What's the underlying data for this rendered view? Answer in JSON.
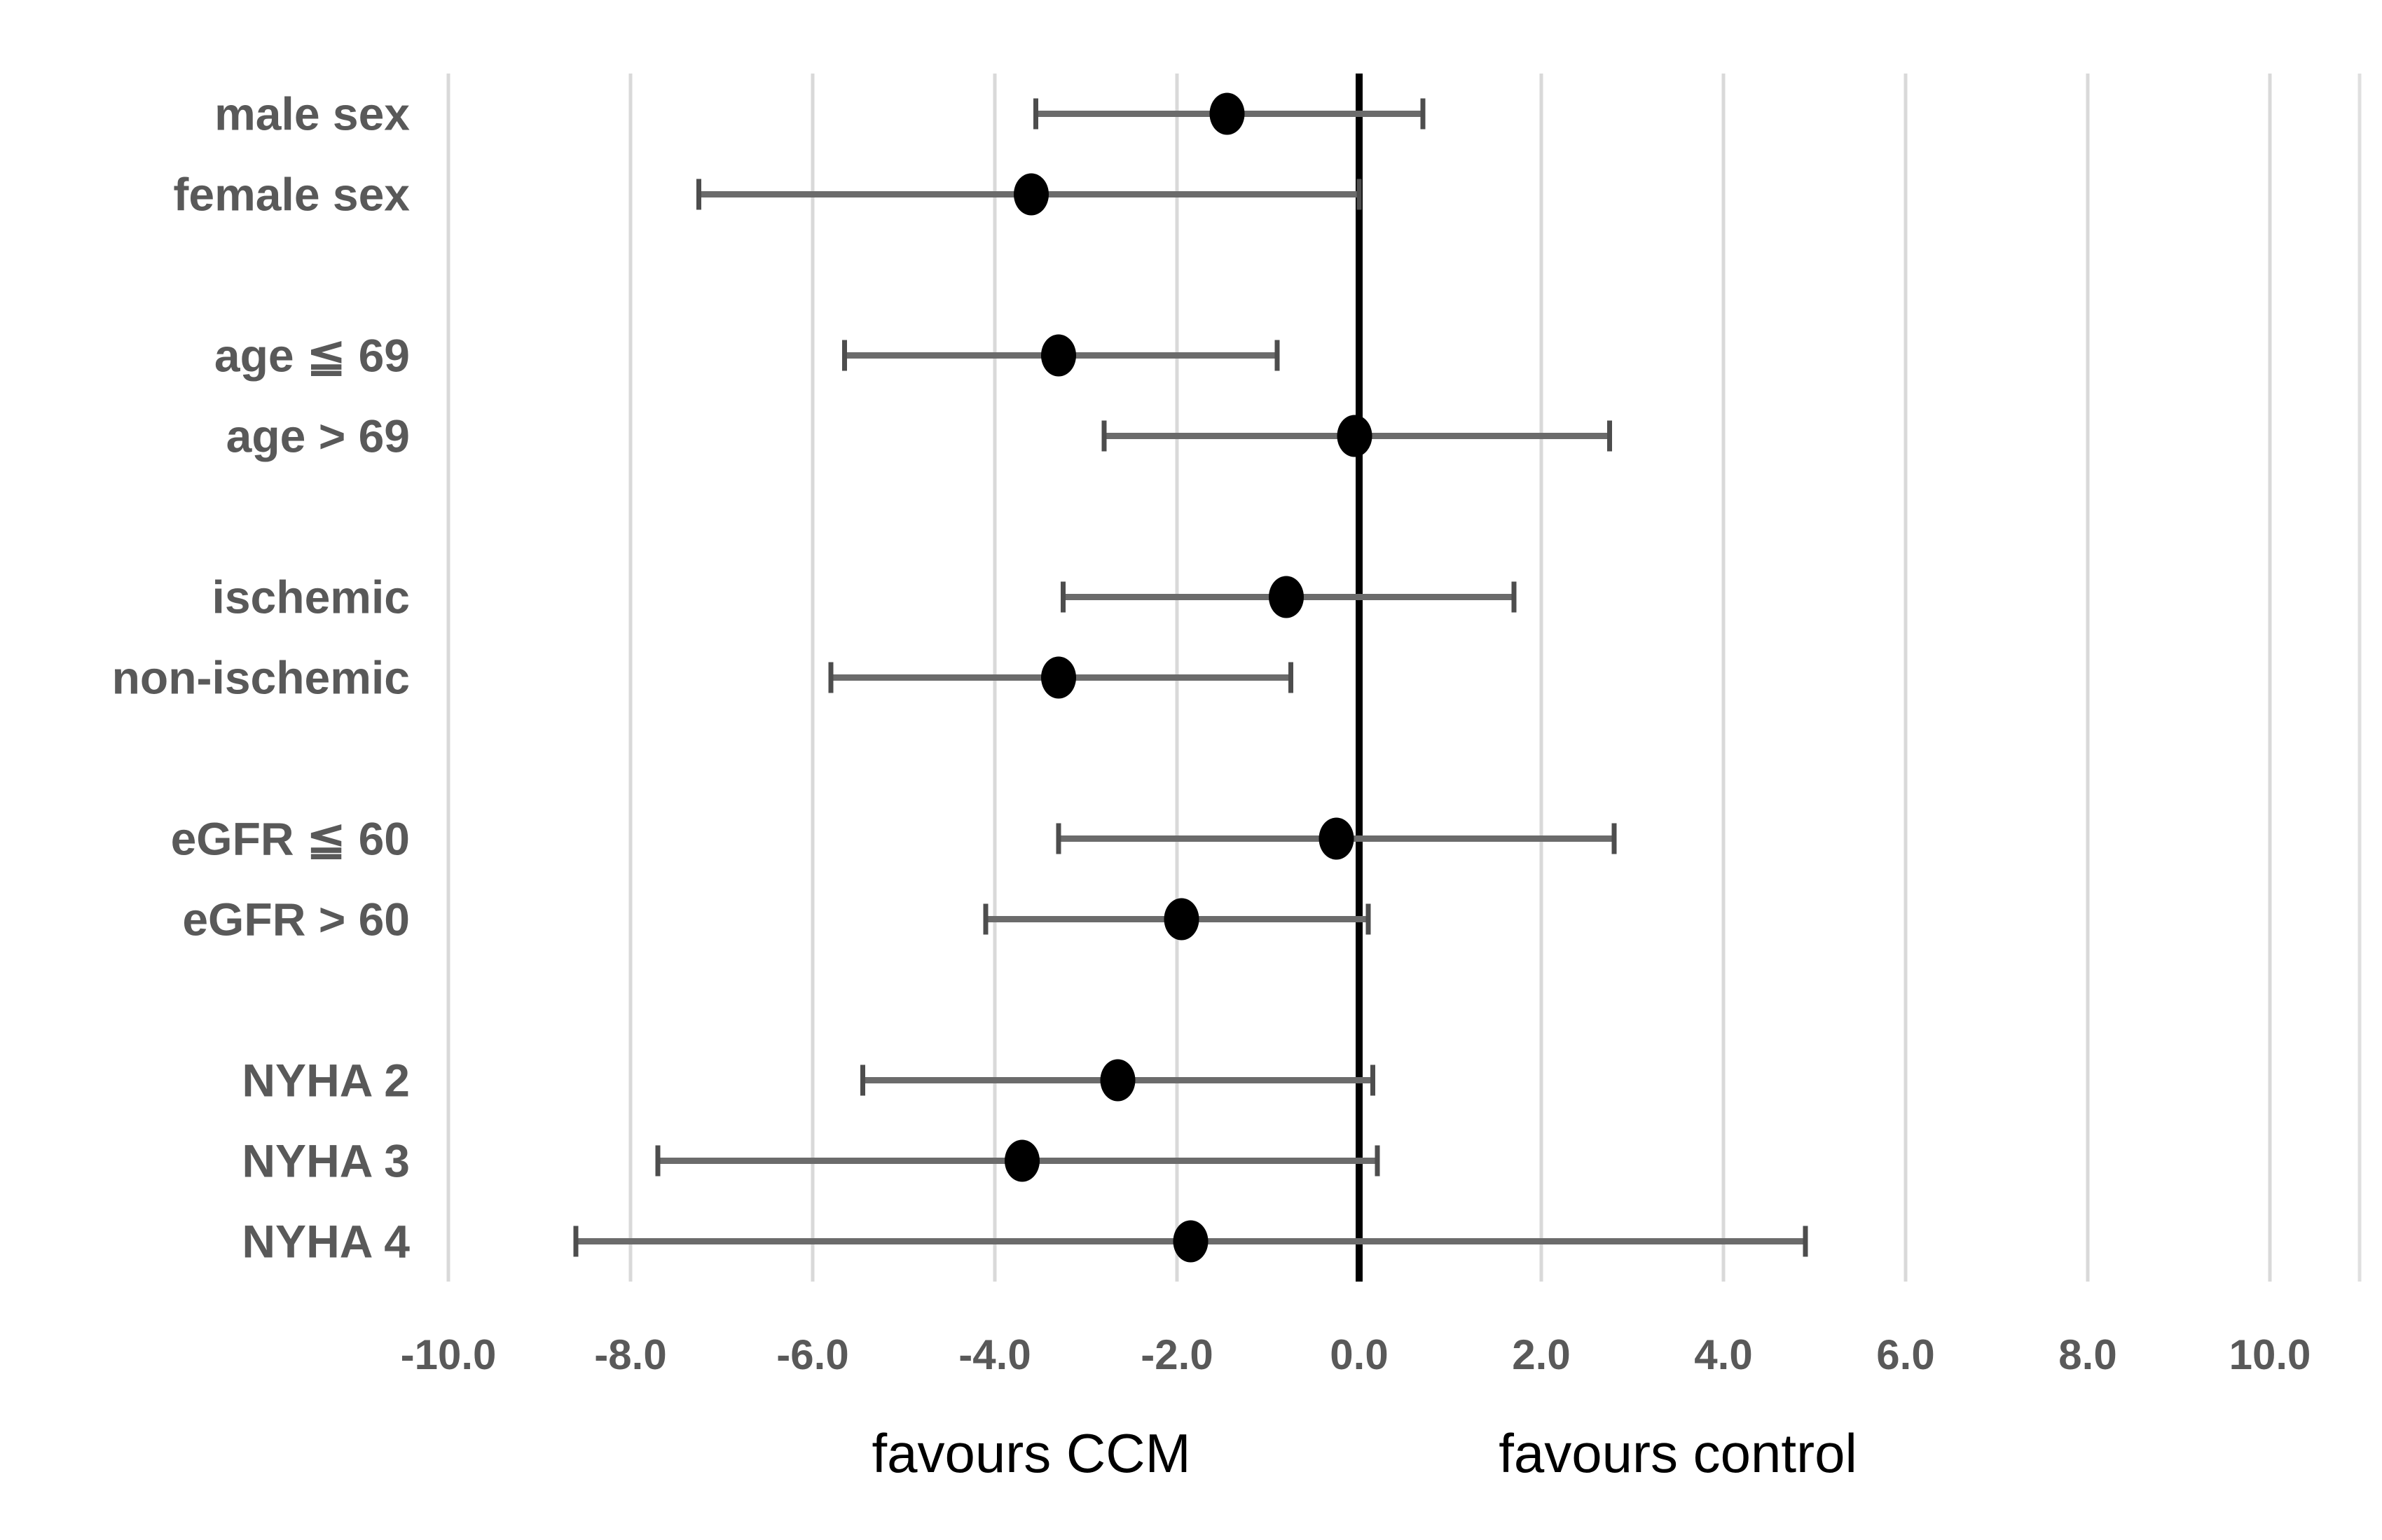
{
  "chart_data": {
    "type": "scatter",
    "subtype": "forest-plot",
    "title": "",
    "xlabel": "",
    "ylabel": "",
    "xlim": [
      -10.0,
      10.0
    ],
    "grid": "vertical-only",
    "legend": "none",
    "x_axis": {
      "tick_values": [
        -10,
        -8,
        -6,
        -4,
        -2,
        0,
        2,
        4,
        6,
        8,
        10
      ],
      "tick_labels": [
        "-10.0",
        "-8.0",
        "-6.0",
        "-4.0",
        "-2.0",
        "0.0",
        "2.0",
        "4.0",
        "6.0",
        "8.0",
        "10.0"
      ]
    },
    "reference_line_x": 0.0,
    "categories": [
      {
        "label": "male sex",
        "group": 0,
        "estimate": -1.45,
        "ci_low": -3.55,
        "ci_high": 0.7
      },
      {
        "label": "female sex",
        "group": 0,
        "estimate": -3.6,
        "ci_low": -7.25,
        "ci_high": 0.0
      },
      {
        "label": "age ≦ 69",
        "group": 1,
        "estimate": -3.3,
        "ci_low": -5.65,
        "ci_high": -0.9
      },
      {
        "label": "age > 69",
        "group": 1,
        "estimate": -0.05,
        "ci_low": -2.8,
        "ci_high": 2.75
      },
      {
        "label": "ischemic",
        "group": 2,
        "estimate": -0.8,
        "ci_low": -3.25,
        "ci_high": 1.7
      },
      {
        "label": "non-ischemic",
        "group": 2,
        "estimate": -3.3,
        "ci_low": -5.8,
        "ci_high": -0.75
      },
      {
        "label": "eGFR ≦ 60",
        "group": 3,
        "estimate": -0.25,
        "ci_low": -3.3,
        "ci_high": 2.8
      },
      {
        "label": "eGFR > 60",
        "group": 3,
        "estimate": -1.95,
        "ci_low": -4.1,
        "ci_high": 0.1
      },
      {
        "label": "NYHA 2",
        "group": 4,
        "estimate": -2.65,
        "ci_low": -5.45,
        "ci_high": 0.15
      },
      {
        "label": "NYHA 3",
        "group": 4,
        "estimate": -3.7,
        "ci_low": -7.7,
        "ci_high": 0.2
      },
      {
        "label": "NYHA 4",
        "group": 4,
        "estimate": -1.85,
        "ci_low": -8.6,
        "ci_high": 4.9
      }
    ],
    "annotations": [
      {
        "text": "favours CCM",
        "x_value": -3.6
      },
      {
        "text": "favours control",
        "x_value": 3.5
      }
    ],
    "colors": {
      "marker": "#000000",
      "ci_line": "#6b6b6b",
      "ci_cap": "#4d4d4d",
      "gridline": "#d9d9d9",
      "plot_border": "#e0e0e0",
      "zero_line": "#000000",
      "category_label": "#595959",
      "tick_label": "#595959",
      "annotation": "#000000",
      "background": "#ffffff"
    }
  }
}
